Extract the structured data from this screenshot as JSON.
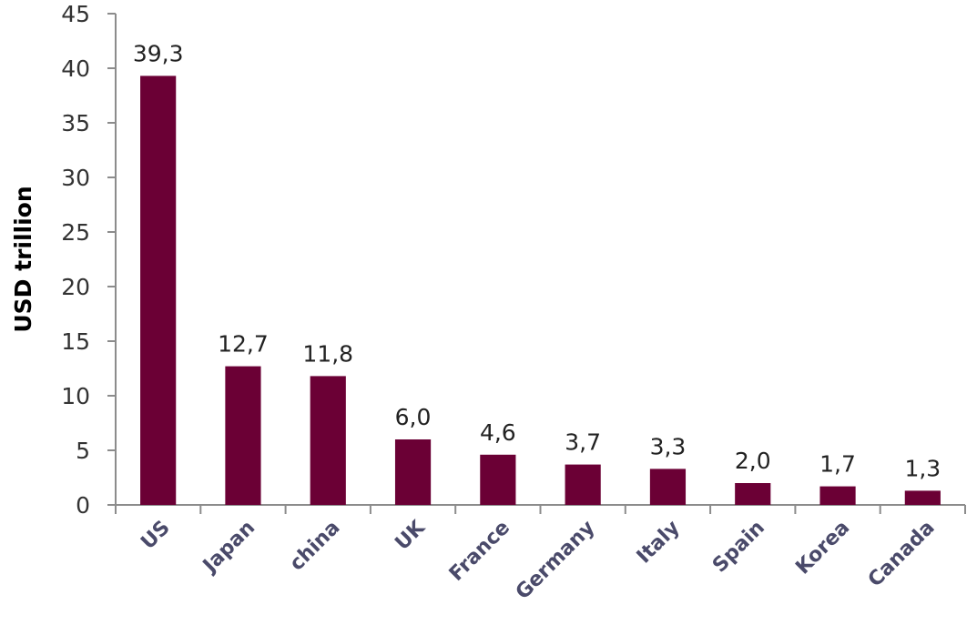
{
  "chart_data": {
    "type": "bar",
    "title": "",
    "xlabel": "",
    "ylabel": "USD trillion",
    "categories": [
      "US",
      "Japan",
      "china",
      "UK",
      "France",
      "Germany",
      "Italy",
      "Spain",
      "Korea",
      "Canada"
    ],
    "values": [
      39.3,
      12.7,
      11.8,
      6.0,
      4.6,
      3.7,
      3.3,
      2.0,
      1.7,
      1.3
    ],
    "value_labels": [
      "39,3",
      "12,7",
      "11,8",
      "6,0",
      "4,6",
      "3,7",
      "3,3",
      "2,0",
      "1,7",
      "1,3"
    ],
    "y_ticks": [
      "0",
      "5",
      "10",
      "15",
      "20",
      "25",
      "30",
      "35",
      "40",
      "45"
    ],
    "ylim": [
      0,
      45
    ],
    "grid": false,
    "legend": "none",
    "colors": {
      "bar": "#6b0035",
      "axis": "#8c8c8c"
    }
  }
}
